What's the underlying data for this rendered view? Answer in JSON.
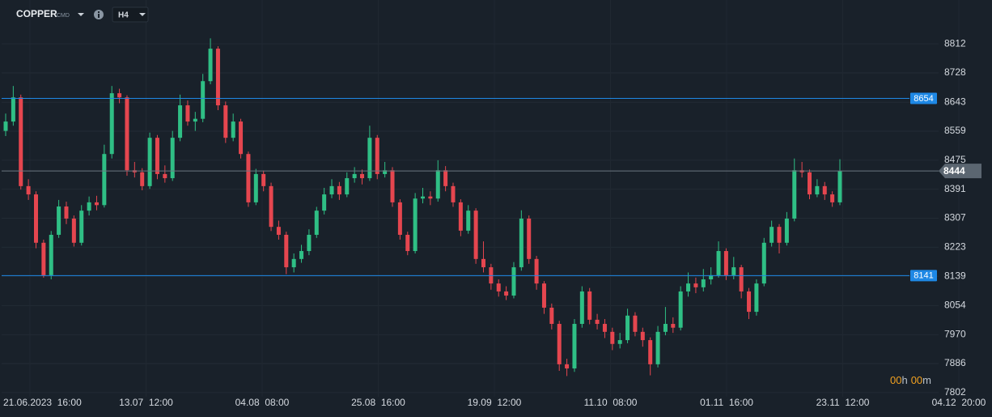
{
  "toolbar": {
    "symbol": "COPPER",
    "symbol_tag": "CMD",
    "timeframe": "H4"
  },
  "timer": [
    "00",
    "h",
    "00",
    "m"
  ],
  "chart_data": {
    "type": "candlestick",
    "up_color": "#2fbf85",
    "down_color": "#e5464f",
    "grid": true,
    "ylim": [
      7790,
      8939
    ],
    "yticks": [
      7802,
      7886,
      7970,
      8054,
      8139,
      8223,
      8307,
      8391,
      8475,
      8559,
      8643,
      8728,
      8812
    ],
    "xticks": [
      "21.06.2023  16:00",
      "13.07  12:00",
      "04.08  08:00",
      "25.08  16:00",
      "19.09  12:00",
      "11.10  08:00",
      "01.11  16:00",
      "23.11  12:00",
      "04.12  20:00"
    ],
    "levels": [
      {
        "value": 8654,
        "color": "#1e88e5"
      },
      {
        "value": 8141,
        "color": "#1e88e5"
      }
    ],
    "current_price": 8444,
    "ohlc": [
      [
        8560,
        8610,
        8545,
        8587
      ],
      [
        8587,
        8690,
        8575,
        8657
      ],
      [
        8657,
        8665,
        8390,
        8400
      ],
      [
        8400,
        8420,
        8360,
        8376
      ],
      [
        8376,
        8385,
        8220,
        8236
      ],
      [
        8236,
        8245,
        8135,
        8142
      ],
      [
        8142,
        8270,
        8130,
        8259
      ],
      [
        8259,
        8360,
        8250,
        8341
      ],
      [
        8341,
        8355,
        8290,
        8306
      ],
      [
        8306,
        8315,
        8225,
        8236
      ],
      [
        8236,
        8345,
        8228,
        8329
      ],
      [
        8329,
        8370,
        8315,
        8353
      ],
      [
        8353,
        8372,
        8330,
        8345
      ],
      [
        8345,
        8520,
        8338,
        8493
      ],
      [
        8493,
        8690,
        8480,
        8669
      ],
      [
        8669,
        8682,
        8640,
        8657
      ],
      [
        8657,
        8663,
        8430,
        8446
      ],
      [
        8446,
        8470,
        8425,
        8440
      ],
      [
        8440,
        8452,
        8388,
        8400
      ],
      [
        8400,
        8555,
        8392,
        8540
      ],
      [
        8540,
        8548,
        8420,
        8435
      ],
      [
        8435,
        8460,
        8410,
        8423
      ],
      [
        8423,
        8560,
        8415,
        8540
      ],
      [
        8540,
        8665,
        8530,
        8634
      ],
      [
        8634,
        8648,
        8575,
        8587
      ],
      [
        8587,
        8615,
        8560,
        8595
      ],
      [
        8595,
        8725,
        8585,
        8704
      ],
      [
        8704,
        8828,
        8695,
        8798
      ],
      [
        8798,
        8805,
        8620,
        8634
      ],
      [
        8634,
        8645,
        8525,
        8540
      ],
      [
        8540,
        8610,
        8530,
        8587
      ],
      [
        8587,
        8595,
        8480,
        8493
      ],
      [
        8493,
        8500,
        8340,
        8353
      ],
      [
        8353,
        8450,
        8345,
        8435
      ],
      [
        8435,
        8445,
        8385,
        8400
      ],
      [
        8400,
        8410,
        8270,
        8282
      ],
      [
        8282,
        8300,
        8245,
        8259
      ],
      [
        8259,
        8268,
        8145,
        8165
      ],
      [
        8165,
        8205,
        8150,
        8189
      ],
      [
        8189,
        8230,
        8178,
        8212
      ],
      [
        8212,
        8275,
        8200,
        8259
      ],
      [
        8259,
        8340,
        8250,
        8329
      ],
      [
        8329,
        8395,
        8318,
        8376
      ],
      [
        8376,
        8420,
        8365,
        8400
      ],
      [
        8400,
        8412,
        8360,
        8376
      ],
      [
        8376,
        8440,
        8368,
        8423
      ],
      [
        8423,
        8455,
        8410,
        8435
      ],
      [
        8435,
        8448,
        8405,
        8423
      ],
      [
        8423,
        8575,
        8415,
        8540
      ],
      [
        8540,
        8548,
        8420,
        8435
      ],
      [
        8435,
        8470,
        8425,
        8446
      ],
      [
        8446,
        8455,
        8340,
        8353
      ],
      [
        8353,
        8362,
        8245,
        8259
      ],
      [
        8259,
        8268,
        8200,
        8212
      ],
      [
        8212,
        8380,
        8205,
        8364
      ],
      [
        8364,
        8395,
        8350,
        8370
      ],
      [
        8370,
        8385,
        8345,
        8364
      ],
      [
        8364,
        8475,
        8355,
        8446
      ],
      [
        8446,
        8458,
        8385,
        8400
      ],
      [
        8400,
        8410,
        8340,
        8353
      ],
      [
        8353,
        8362,
        8255,
        8271
      ],
      [
        8271,
        8345,
        8262,
        8329
      ],
      [
        8329,
        8336,
        8175,
        8189
      ],
      [
        8189,
        8240,
        8150,
        8165
      ],
      [
        8165,
        8175,
        8100,
        8118
      ],
      [
        8118,
        8130,
        8080,
        8095
      ],
      [
        8095,
        8110,
        8070,
        8083
      ],
      [
        8083,
        8180,
        8075,
        8165
      ],
      [
        8165,
        8330,
        8155,
        8306
      ],
      [
        8306,
        8315,
        8175,
        8189
      ],
      [
        8189,
        8198,
        8100,
        8118
      ],
      [
        8118,
        8125,
        8030,
        8048
      ],
      [
        8048,
        8060,
        7985,
        8001
      ],
      [
        8001,
        8010,
        7865,
        7884
      ],
      [
        7884,
        7900,
        7850,
        7872
      ],
      [
        7872,
        8015,
        7862,
        8001
      ],
      [
        8001,
        8110,
        7990,
        8095
      ],
      [
        8095,
        8105,
        8000,
        8013
      ],
      [
        8013,
        8030,
        7985,
        8001
      ],
      [
        8001,
        8015,
        7960,
        7978
      ],
      [
        7978,
        7990,
        7925,
        7943
      ],
      [
        7943,
        7975,
        7930,
        7954
      ],
      [
        7954,
        8045,
        7945,
        8025
      ],
      [
        8025,
        8035,
        7965,
        7978
      ],
      [
        7978,
        7990,
        7935,
        7954
      ],
      [
        7954,
        7962,
        7852,
        7884
      ],
      [
        7884,
        7995,
        7875,
        7978
      ],
      [
        7978,
        8050,
        7968,
        8001
      ],
      [
        8001,
        8020,
        7975,
        7990
      ],
      [
        7990,
        8110,
        7982,
        8095
      ],
      [
        8095,
        8150,
        8080,
        8118
      ],
      [
        8118,
        8135,
        8090,
        8107
      ],
      [
        8107,
        8160,
        8095,
        8130
      ],
      [
        8130,
        8165,
        8115,
        8142
      ],
      [
        8142,
        8240,
        8135,
        8212
      ],
      [
        8212,
        8220,
        8128,
        8142
      ],
      [
        8142,
        8195,
        8130,
        8165
      ],
      [
        8165,
        8172,
        8075,
        8095
      ],
      [
        8095,
        8105,
        8015,
        8036
      ],
      [
        8036,
        8130,
        8025,
        8118
      ],
      [
        8118,
        8250,
        8110,
        8236
      ],
      [
        8236,
        8300,
        8225,
        8282
      ],
      [
        8282,
        8290,
        8205,
        8236
      ],
      [
        8236,
        8325,
        8228,
        8306
      ],
      [
        8306,
        8480,
        8298,
        8446
      ],
      [
        8446,
        8470,
        8425,
        8440
      ],
      [
        8440,
        8448,
        8362,
        8376
      ],
      [
        8376,
        8420,
        8368,
        8400
      ],
      [
        8400,
        8412,
        8360,
        8376
      ],
      [
        8376,
        8385,
        8340,
        8353
      ],
      [
        8353,
        8478,
        8345,
        8444
      ]
    ]
  }
}
